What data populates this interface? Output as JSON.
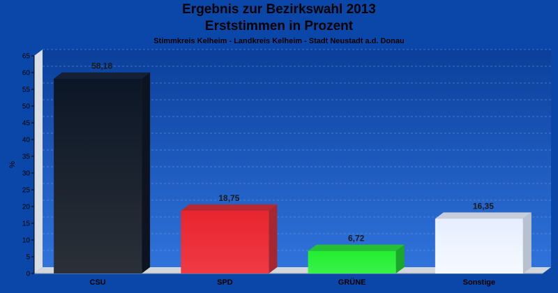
{
  "chart_data": {
    "type": "bar",
    "title": "Ergebnis zur Bezirkswahl 2013",
    "title_line2": "Erststimmen in Prozent",
    "subtitle": "Stimmkreis Kelheim - Landkreis Kelheim - Stadt Neustadt a.d. Donau",
    "ylabel": "%",
    "xlabel": "",
    "ylim": [
      0,
      65
    ],
    "yticks": [
      0,
      5,
      10,
      15,
      20,
      25,
      30,
      35,
      40,
      45,
      50,
      55,
      60,
      65
    ],
    "grid": true,
    "categories": [
      "CSU",
      "SPD",
      "GRÜNE",
      "Sonstige"
    ],
    "values": [
      58.18,
      18.75,
      6.72,
      16.35
    ],
    "value_labels": [
      "58,18",
      "18,75",
      "6,72",
      "16,35"
    ],
    "colors": [
      "#1c2633",
      "#e8303a",
      "#2ef03c",
      "#eef3ff"
    ]
  }
}
